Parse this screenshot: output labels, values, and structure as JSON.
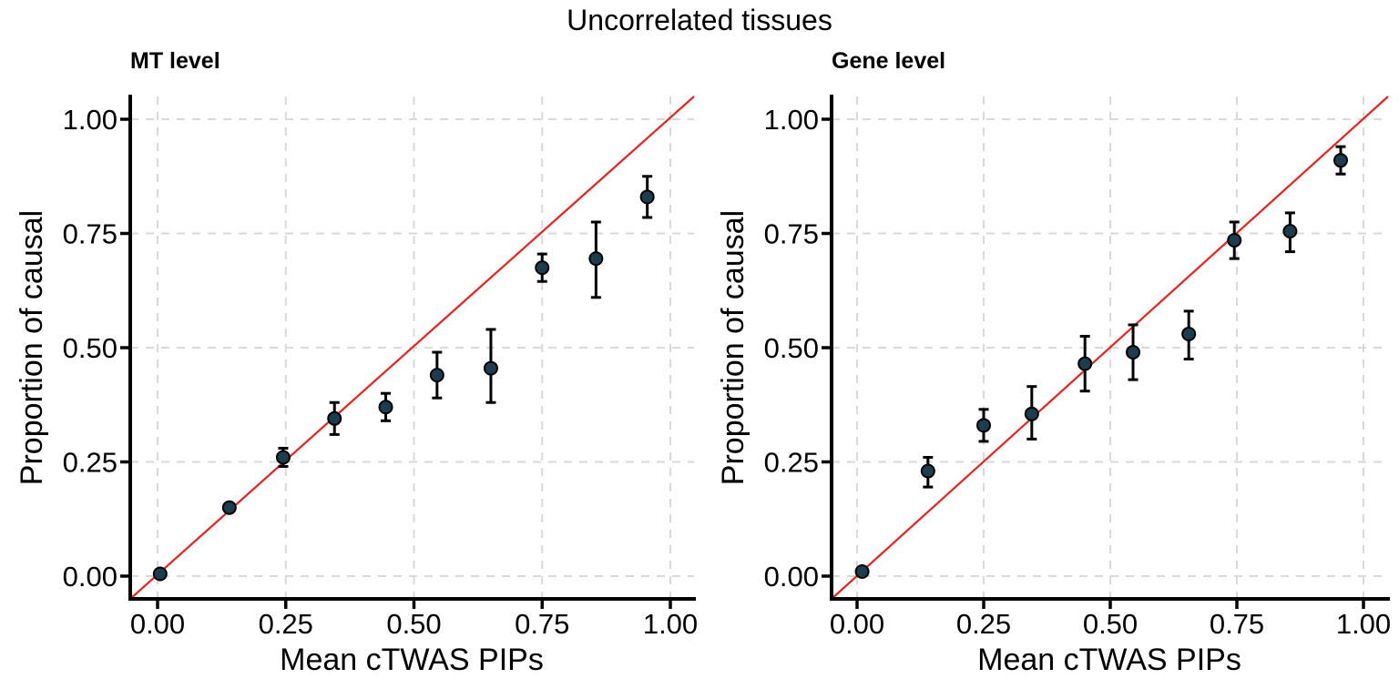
{
  "figure": {
    "title": "Uncorrelated tissues"
  },
  "colors": {
    "background": "#ffffff",
    "point_fill": "#1b3d4f",
    "point_stroke": "#000000",
    "error_bar": "#000000",
    "reference_line": "#e8221f",
    "gridline": "#d9d9d9",
    "axis": "#000000",
    "text": "#000000"
  },
  "chart_data": [
    {
      "type": "scatter",
      "panel": "left",
      "title": "MT level",
      "xlabel": "Mean cTWAS PIPs",
      "ylabel": "Proportion of causal",
      "xlim": [
        -0.05,
        1.05
      ],
      "ylim": [
        -0.05,
        1.05
      ],
      "grid": "major, dashed, both axes",
      "legend": "none",
      "reference_line": "y = x",
      "xticks": {
        "values": [
          0,
          0.25,
          0.5,
          0.75,
          1
        ],
        "labels": [
          "0.00",
          "0.25",
          "0.50",
          "0.75",
          "1.00"
        ]
      },
      "yticks": {
        "values": [
          0,
          0.25,
          0.5,
          0.75,
          1
        ],
        "labels": [
          "0.00",
          "0.25",
          "0.50",
          "0.75",
          "1.00"
        ]
      },
      "points": [
        {
          "x": 0.005,
          "y": 0.005,
          "ylo": 0.005,
          "yhi": 0.005
        },
        {
          "x": 0.14,
          "y": 0.15,
          "ylo": 0.15,
          "yhi": 0.15
        },
        {
          "x": 0.245,
          "y": 0.26,
          "ylo": 0.24,
          "yhi": 0.28
        },
        {
          "x": 0.345,
          "y": 0.345,
          "ylo": 0.31,
          "yhi": 0.38
        },
        {
          "x": 0.445,
          "y": 0.37,
          "ylo": 0.34,
          "yhi": 0.4
        },
        {
          "x": 0.545,
          "y": 0.44,
          "ylo": 0.39,
          "yhi": 0.49
        },
        {
          "x": 0.65,
          "y": 0.455,
          "ylo": 0.38,
          "yhi": 0.54
        },
        {
          "x": 0.75,
          "y": 0.675,
          "ylo": 0.645,
          "yhi": 0.705
        },
        {
          "x": 0.855,
          "y": 0.695,
          "ylo": 0.61,
          "yhi": 0.775
        },
        {
          "x": 0.955,
          "y": 0.83,
          "ylo": 0.785,
          "yhi": 0.875
        }
      ]
    },
    {
      "type": "scatter",
      "panel": "right",
      "title": "Gene level",
      "xlabel": "Mean cTWAS PIPs",
      "ylabel": "Proportion of causal",
      "xlim": [
        -0.05,
        1.05
      ],
      "ylim": [
        -0.05,
        1.05
      ],
      "grid": "major, dashed, both axes",
      "legend": "none",
      "reference_line": "y = x",
      "xticks": {
        "values": [
          0,
          0.25,
          0.5,
          0.75,
          1
        ],
        "labels": [
          "0.00",
          "0.25",
          "0.50",
          "0.75",
          "1.00"
        ]
      },
      "yticks": {
        "values": [
          0,
          0.25,
          0.5,
          0.75,
          1
        ],
        "labels": [
          "0.00",
          "0.25",
          "0.50",
          "0.75",
          "1.00"
        ]
      },
      "points": [
        {
          "x": 0.01,
          "y": 0.01,
          "ylo": 0.01,
          "yhi": 0.01
        },
        {
          "x": 0.14,
          "y": 0.23,
          "ylo": 0.195,
          "yhi": 0.26
        },
        {
          "x": 0.25,
          "y": 0.33,
          "ylo": 0.295,
          "yhi": 0.365
        },
        {
          "x": 0.345,
          "y": 0.355,
          "ylo": 0.3,
          "yhi": 0.415
        },
        {
          "x": 0.45,
          "y": 0.465,
          "ylo": 0.405,
          "yhi": 0.525
        },
        {
          "x": 0.545,
          "y": 0.49,
          "ylo": 0.43,
          "yhi": 0.55
        },
        {
          "x": 0.655,
          "y": 0.53,
          "ylo": 0.475,
          "yhi": 0.58
        },
        {
          "x": 0.745,
          "y": 0.735,
          "ylo": 0.695,
          "yhi": 0.775
        },
        {
          "x": 0.855,
          "y": 0.755,
          "ylo": 0.71,
          "yhi": 0.795
        },
        {
          "x": 0.955,
          "y": 0.91,
          "ylo": 0.88,
          "yhi": 0.94
        }
      ]
    }
  ]
}
